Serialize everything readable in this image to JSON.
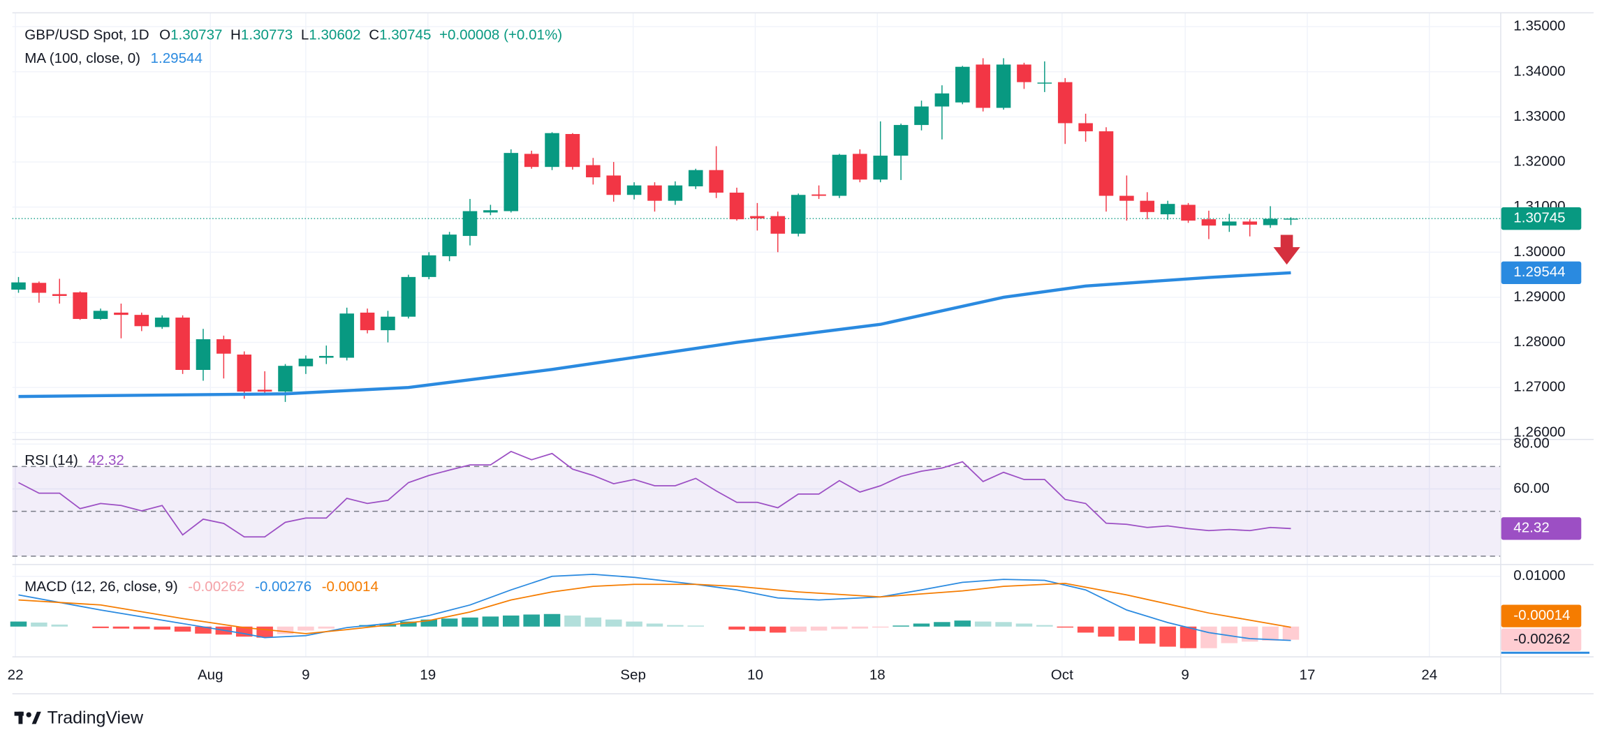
{
  "chart_data": {
    "type": "candlestick",
    "title": "GBP/USD Spot, 1D",
    "ohlc_letters": [
      "O",
      "H",
      "L",
      "C"
    ],
    "change": "+0.00008 (+0.01%)",
    "up_color": "#089981",
    "down_color": "#f23645",
    "grid": true,
    "xlim": [
      -0.3,
      72.2
    ],
    "xticks": [
      {
        "value": -0.15,
        "label": "22"
      },
      {
        "value": 9.35,
        "label": "Aug"
      },
      {
        "value": 14,
        "label": "9"
      },
      {
        "value": 19.95,
        "label": "19"
      },
      {
        "value": 29.95,
        "label": "Sep"
      },
      {
        "value": 35.9,
        "label": "10"
      },
      {
        "value": 41.85,
        "label": "18"
      },
      {
        "value": 50.85,
        "label": "Oct"
      },
      {
        "value": 56.85,
        "label": "9"
      },
      {
        "value": 62.8,
        "label": "17"
      },
      {
        "value": 68.75,
        "label": "24"
      }
    ],
    "ylim": [
      1.2586,
      1.3525
    ],
    "yticks": [
      {
        "value": 1.35,
        "label": "1.35000"
      },
      {
        "value": 1.34,
        "label": "1.34000"
      },
      {
        "value": 1.33,
        "label": "1.33000"
      },
      {
        "value": 1.32,
        "label": "1.32000"
      },
      {
        "value": 1.31,
        "label": "1.31000"
      },
      {
        "value": 1.3,
        "label": "1.30000"
      },
      {
        "value": 1.29,
        "label": "1.29000"
      },
      {
        "value": 1.28,
        "label": "1.28000"
      },
      {
        "value": 1.27,
        "label": "1.27000"
      },
      {
        "value": 1.26,
        "label": "1.26000"
      }
    ],
    "open": [
      1.2917,
      1.2932,
      1.2907,
      1.2911,
      1.2852,
      1.2866,
      1.2861,
      1.2834,
      1.2855,
      1.2739,
      1.2807,
      1.2773,
      1.2695,
      1.2691,
      1.2747,
      1.2766,
      1.2766,
      1.2866,
      1.2827,
      1.2857,
      1.2945,
      1.2991,
      1.3036,
      1.3088,
      1.3091,
      1.3218,
      1.3189,
      1.3262,
      1.3193,
      1.317,
      1.3127,
      1.3148,
      1.3114,
      1.3146,
      1.3182,
      1.3132,
      1.308,
      1.308,
      1.3041,
      1.3128,
      1.3125,
      1.3218,
      1.3161,
      1.3214,
      1.3282,
      1.3323,
      1.3332,
      1.3416,
      1.332,
      1.3416,
      1.3375,
      1.3377,
      1.3286,
      1.3268,
      1.3125,
      1.3114,
      1.3084,
      1.3105,
      1.3073,
      1.3059,
      1.3068,
      1.306,
      1.30737
    ],
    "high": [
      1.2945,
      1.2935,
      1.2941,
      1.2913,
      1.2875,
      1.2886,
      1.2866,
      1.286,
      1.286,
      1.283,
      1.2815,
      1.278,
      1.2736,
      1.2752,
      1.2771,
      1.2793,
      1.2877,
      1.2875,
      1.287,
      1.295,
      1.3,
      1.3045,
      1.3118,
      1.3105,
      1.3228,
      1.3225,
      1.3266,
      1.3264,
      1.3209,
      1.32,
      1.3155,
      1.3155,
      1.3157,
      1.3185,
      1.3235,
      1.3143,
      1.3109,
      1.309,
      1.313,
      1.3148,
      1.3218,
      1.3228,
      1.329,
      1.3285,
      1.3336,
      1.337,
      1.3413,
      1.343,
      1.343,
      1.342,
      1.3423,
      1.3386,
      1.3307,
      1.3277,
      1.317,
      1.3133,
      1.3114,
      1.3109,
      1.3092,
      1.3085,
      1.3073,
      1.3102,
      1.30773
    ],
    "low": [
      1.291,
      1.2888,
      1.2886,
      1.285,
      1.285,
      1.2809,
      1.2825,
      1.283,
      1.273,
      1.2715,
      1.272,
      1.2675,
      1.2684,
      1.2668,
      1.273,
      1.2752,
      1.276,
      1.282,
      1.28,
      1.2853,
      1.294,
      1.298,
      1.3015,
      1.3082,
      1.3088,
      1.3185,
      1.3182,
      1.3183,
      1.315,
      1.3112,
      1.3117,
      1.309,
      1.3105,
      1.314,
      1.312,
      1.307,
      1.3048,
      1.3,
      1.3035,
      1.3118,
      1.312,
      1.3155,
      1.3155,
      1.316,
      1.327,
      1.325,
      1.3328,
      1.3312,
      1.3316,
      1.3362,
      1.3355,
      1.324,
      1.3245,
      1.309,
      1.307,
      1.3073,
      1.3072,
      1.3065,
      1.3029,
      1.3045,
      1.3035,
      1.3054,
      1.30602
    ],
    "close": [
      1.2933,
      1.291,
      1.2903,
      1.2852,
      1.287,
      1.2861,
      1.2836,
      1.2855,
      1.2739,
      1.2807,
      1.2775,
      1.2691,
      1.2691,
      1.2748,
      1.2764,
      1.277,
      1.2864,
      1.2827,
      1.2857,
      1.2945,
      1.2993,
      1.3039,
      1.3091,
      1.3093,
      1.322,
      1.3189,
      1.3264,
      1.3189,
      1.3166,
      1.3127,
      1.3148,
      1.3114,
      1.3148,
      1.3182,
      1.3132,
      1.3073,
      1.3075,
      1.3041,
      1.3127,
      1.3125,
      1.3216,
      1.3161,
      1.3214,
      1.3282,
      1.3323,
      1.3352,
      1.3411,
      1.332,
      1.3416,
      1.3377,
      1.3376,
      1.3286,
      1.3268,
      1.3125,
      1.3114,
      1.3089,
      1.3107,
      1.307,
      1.3059,
      1.3068,
      1.3061,
      1.3074,
      1.30745
    ],
    "ma": {
      "name": "MA (100, close, 0)",
      "color": "#2a8ae0",
      "x": [
        0,
        13,
        19,
        26,
        35,
        42,
        48,
        52,
        58,
        62
      ],
      "values": [
        1.268,
        1.2686,
        1.27,
        1.274,
        1.28,
        1.284,
        1.29,
        1.2925,
        1.2944,
        1.29544
      ]
    },
    "rsi": {
      "name": "RSI (14)",
      "color": "#9c4fc4",
      "ylim": [
        26.5,
        82.3
      ],
      "yticks": [
        {
          "value": 80,
          "label": "80.00"
        },
        {
          "value": 60,
          "label": "60.00"
        }
      ],
      "levels": [
        70,
        50,
        30
      ],
      "values": [
        62.8,
        58.1,
        58.1,
        51.2,
        53.5,
        52.6,
        50.2,
        52.6,
        39.5,
        46.5,
        44.6,
        38.6,
        38.6,
        45.1,
        47,
        47,
        55.8,
        53.5,
        54.9,
        62.8,
        66,
        68.4,
        70.7,
        70.7,
        76.7,
        73,
        75.8,
        68.8,
        66,
        62.3,
        64.2,
        61.4,
        61.4,
        64.7,
        59.1,
        54,
        54,
        51.6,
        57.7,
        57.7,
        63.7,
        58.6,
        61.4,
        65.6,
        67.9,
        69.3,
        72.1,
        63.3,
        67.4,
        64.2,
        64.2,
        55.3,
        53.5,
        44.7,
        44.2,
        42.8,
        43.5,
        42.3,
        41.4,
        41.9,
        41.4,
        42.8,
        42.32
      ]
    },
    "macd": {
      "name": "MACD (12, 26, close, 9)",
      "ylim": [
        -0.00592,
        0.01245
      ],
      "yticks": [
        {
          "value": 0.01,
          "label": "0.01000"
        }
      ],
      "histogram": {
        "colors": [
          "#26a69a",
          "#b2dfdb",
          "#ff5252",
          "#ffcdd2"
        ],
        "values": [
          0.001,
          0.0008,
          0.0004,
          0,
          -0.0003,
          -0.0004,
          -0.0005,
          -0.0006,
          -0.001,
          -0.0014,
          -0.0016,
          -0.002,
          -0.0022,
          -0.0015,
          -0.0008,
          -0.0004,
          0,
          0.0003,
          0.0006,
          0.001,
          0.0014,
          0.0016,
          0.0018,
          0.002,
          0.0022,
          0.0024,
          0.0025,
          0.0022,
          0.0018,
          0.0014,
          0.001,
          0.0006,
          0.0003,
          0.0002,
          0,
          -0.0006,
          -0.0009,
          -0.0012,
          -0.001,
          -0.0008,
          -0.0005,
          -0.0004,
          -0.0002,
          0.0002,
          0.0006,
          0.0009,
          0.0012,
          0.001,
          0.0009,
          0.0006,
          0.0003,
          -0.0002,
          -0.0012,
          -0.002,
          -0.0028,
          -0.0034,
          -0.004,
          -0.0043,
          -0.0043,
          -0.0033,
          -0.003,
          -0.0028,
          -0.00262
        ]
      },
      "macd_line": {
        "color": "#2a8ae0",
        "x": [
          0,
          4,
          8,
          11,
          12,
          14,
          16,
          18,
          20,
          22,
          24,
          26,
          28,
          30,
          33,
          35,
          37,
          39,
          42,
          44,
          46,
          48,
          50,
          52,
          54,
          56,
          58,
          60,
          62
        ],
        "values": [
          0.0063,
          0.0033,
          0.0006,
          -0.0014,
          -0.0022,
          -0.0018,
          -0.0002,
          0.0006,
          0.0022,
          0.0043,
          0.0073,
          0.01,
          0.0104,
          0.0098,
          0.0084,
          0.0073,
          0.0057,
          0.0053,
          0.0059,
          0.0073,
          0.0088,
          0.0094,
          0.0092,
          0.0073,
          0.0033,
          0.0008,
          -0.0012,
          -0.0024,
          -0.00276
        ]
      },
      "signal_line": {
        "color": "#f57c00",
        "x": [
          0,
          4,
          8,
          11,
          14,
          16,
          20,
          22,
          24,
          26,
          28,
          30,
          33,
          35,
          38,
          42,
          46,
          48,
          51,
          54,
          58,
          62
        ],
        "values": [
          0.0053,
          0.0043,
          0.0016,
          -0.0002,
          -0.0014,
          -0.0006,
          0.0012,
          0.0029,
          0.0053,
          0.0069,
          0.008,
          0.0084,
          0.0084,
          0.008,
          0.0069,
          0.0059,
          0.0071,
          0.008,
          0.0086,
          0.0063,
          0.0027,
          -0.00014
        ]
      }
    },
    "brand": "TradingView"
  }
}
